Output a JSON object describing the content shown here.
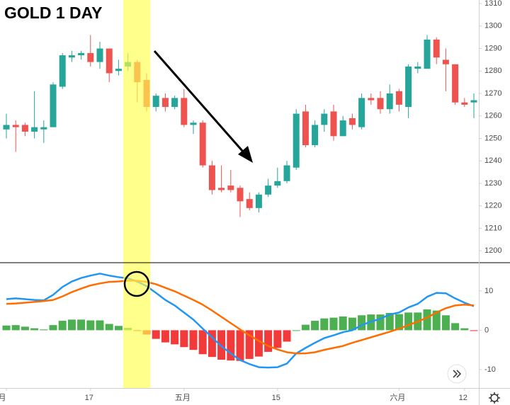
{
  "chart_data": [
    {
      "type": "candlestick",
      "title": "GOLD 1 DAY",
      "open": [
        1254,
        1256,
        1256,
        1253,
        1254,
        1255,
        1273,
        1286,
        1287,
        1288,
        1284,
        1290,
        1280,
        1282,
        1284,
        1276,
        1264,
        1268,
        1264,
        1268,
        1256,
        1257,
        1238,
        1228,
        1229,
        1228,
        1223,
        1219,
        1225,
        1229,
        1231,
        1237,
        1262,
        1247,
        1256,
        1262,
        1251,
        1259,
        1255,
        1268,
        1268,
        1263,
        1271,
        1264,
        1281,
        1281,
        1294,
        1285,
        1283,
        1266,
        1266
      ],
      "high": [
        1261,
        1258,
        1257,
        1271,
        1258,
        1275,
        1288,
        1289,
        1289,
        1296,
        1293,
        1290,
        1285,
        1288,
        1285,
        1279,
        1270,
        1270,
        1269,
        1272,
        1258,
        1258,
        1240,
        1238,
        1236,
        1229,
        1226,
        1226,
        1232,
        1237,
        1240,
        1263,
        1265,
        1258,
        1263,
        1265,
        1260,
        1261,
        1270,
        1270,
        1271,
        1274,
        1272,
        1283,
        1284,
        1296,
        1295,
        1290,
        1283,
        1268,
        1270
      ],
      "low": [
        1250,
        1244,
        1251,
        1250,
        1248,
        1255,
        1272,
        1284,
        1285,
        1282,
        1281,
        1275,
        1278,
        1280,
        1266,
        1262,
        1262,
        1262,
        1263,
        1255,
        1252,
        1237,
        1225,
        1226,
        1226,
        1215,
        1218,
        1217,
        1224,
        1228,
        1230,
        1236,
        1246,
        1246,
        1253,
        1249,
        1251,
        1254,
        1254,
        1265,
        1261,
        1261,
        1262,
        1259,
        1279,
        1281,
        1283,
        1271,
        1265,
        1264,
        1259
      ],
      "close": [
        1256,
        1255,
        1253,
        1255,
        1255,
        1274,
        1287,
        1287,
        1288,
        1284,
        1290,
        1279,
        1281,
        1284,
        1275,
        1264,
        1269,
        1264,
        1268,
        1256,
        1257,
        1238,
        1227,
        1227,
        1227,
        1222,
        1219,
        1225,
        1229,
        1231,
        1238,
        1261,
        1247,
        1256,
        1261,
        1251,
        1258,
        1256,
        1268,
        1267,
        1263,
        1270,
        1265,
        1282,
        1282,
        1294,
        1286,
        1283,
        1266,
        1265,
        1267
      ],
      "up_color": "#26a69a",
      "down_color": "#ef5350",
      "ylim": [
        1195,
        1311.6
      ],
      "yticks": [
        1200,
        1210,
        1220,
        1230,
        1240,
        1250,
        1260,
        1270,
        1280,
        1290,
        1300,
        1310
      ],
      "highlight": {
        "from": 13,
        "to": 15,
        "color": "#ffff4d"
      }
    },
    {
      "type": "macd",
      "categories": [
        "月",
        null,
        null,
        null,
        null,
        null,
        null,
        null,
        null,
        "17",
        null,
        null,
        null,
        null,
        null,
        null,
        null,
        null,
        null,
        "五月",
        null,
        null,
        null,
        null,
        null,
        null,
        null,
        null,
        null,
        "15",
        null,
        null,
        null,
        null,
        null,
        null,
        null,
        null,
        null,
        null,
        null,
        null,
        "六月",
        null,
        null,
        null,
        null,
        null,
        null,
        "12",
        null
      ],
      "series": [
        {
          "color": "#2196f3",
          "values": [
            7.9,
            8.1,
            7.9,
            7.7,
            7.6,
            9.0,
            11.0,
            12.4,
            13.3,
            13.9,
            14.4,
            13.9,
            13.5,
            13.2,
            12.4,
            11.2,
            9.5,
            7.7,
            6.3,
            4.5,
            2.7,
            0.4,
            -1.8,
            -4.1,
            -5.9,
            -7.6,
            -8.6,
            -9.4,
            -9.5,
            -9.4,
            -8.5,
            -5.9,
            -4.5,
            -3.2,
            -2.0,
            -1.3,
            -0.5,
            0,
            1.3,
            2.2,
            2.9,
            4.0,
            4.5,
            5.8,
            6.7,
            8.5,
            9.5,
            9.4,
            8.1,
            7.0,
            6.1
          ]
        },
        {
          "color": "#ff6d00",
          "values": [
            6.7,
            6.8,
            7.0,
            7.2,
            7.4,
            7.7,
            8.6,
            9.7,
            10.6,
            11.4,
            11.9,
            12.3,
            12.4,
            12.6,
            12.6,
            12.3,
            11.7,
            10.8,
            9.9,
            8.8,
            7.7,
            6.5,
            5.0,
            3.4,
            1.8,
            0.2,
            -1.3,
            -2.7,
            -4.0,
            -4.9,
            -5.6,
            -5.9,
            -5.9,
            -5.6,
            -5.0,
            -4.5,
            -4.0,
            -3.2,
            -2.5,
            -1.8,
            -1.1,
            -0.4,
            0.4,
            1.3,
            2.2,
            3.2,
            4.5,
            5.6,
            6.3,
            6.5,
            6.3
          ]
        }
      ],
      "histogram": {
        "up_color": "#4caf50",
        "down_color": "#f23a3a",
        "values": [
          1.2,
          1.3,
          0.9,
          0.5,
          0.2,
          1.3,
          2.4,
          2.7,
          2.7,
          2.5,
          2.5,
          1.6,
          1.1,
          0.6,
          -0.2,
          -1.1,
          -2.2,
          -3.1,
          -3.6,
          -4.3,
          -5.0,
          -6.1,
          -6.8,
          -7.5,
          -7.7,
          -7.8,
          -7.3,
          -6.7,
          -5.5,
          -4.5,
          -2.9,
          0,
          1.4,
          2.4,
          3.0,
          3.2,
          3.5,
          3.2,
          3.8,
          4.0,
          4.0,
          4.4,
          4.1,
          4.5,
          4.5,
          5.3,
          5.0,
          3.8,
          1.8,
          0.5,
          -0.2
        ]
      },
      "ylim": [
        -14.7,
        17.0
      ],
      "yticks": [
        -10,
        0,
        10
      ]
    }
  ]
}
